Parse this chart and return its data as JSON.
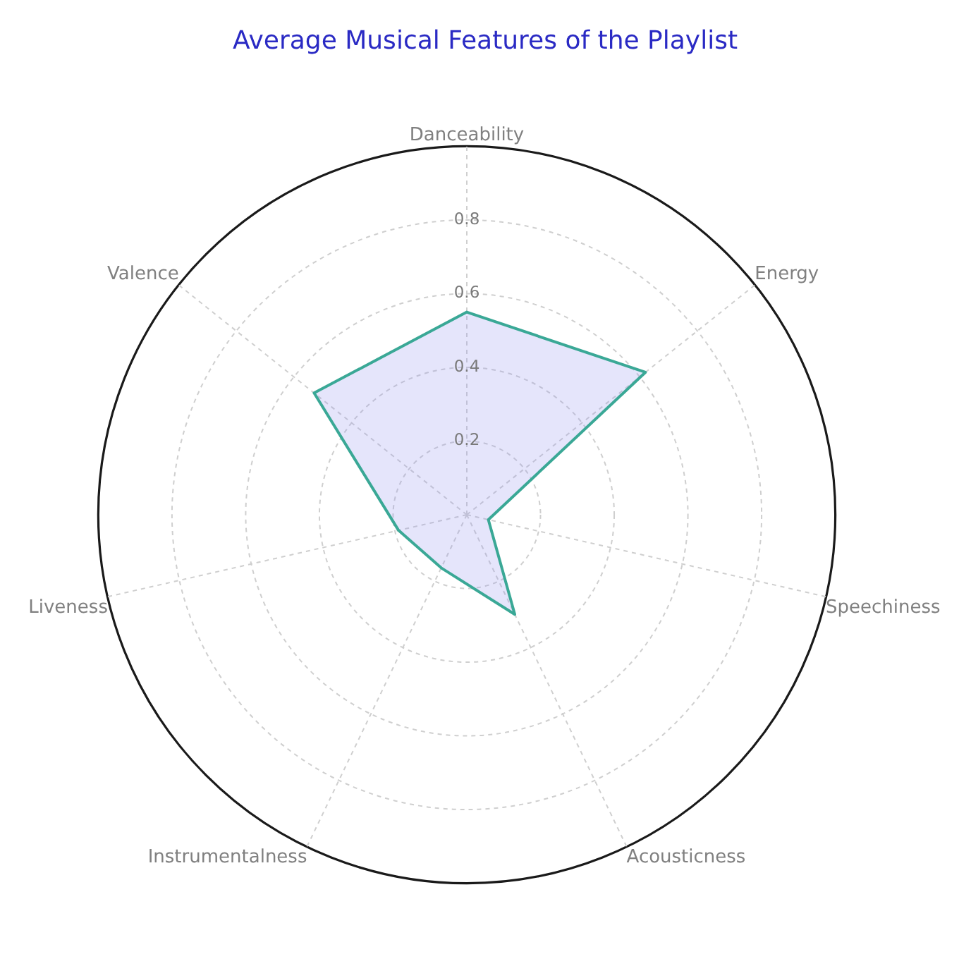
{
  "chart_data": {
    "type": "radar",
    "title": "Average Musical Features of the Playlist",
    "categories": [
      "Danceability",
      "Energy",
      "Speechiness",
      "Acousticness",
      "Instrumentalness",
      "Liveness",
      "Valence"
    ],
    "series": [
      {
        "color": "#3aa896",
        "values": [
          0.55,
          0.62,
          0.06,
          0.3,
          0.16,
          0.19,
          0.53
        ]
      }
    ],
    "ylim": [
      0,
      1
    ],
    "yticks": [
      0.2,
      0.4,
      0.6,
      0.8
    ],
    "grid": true,
    "marker": "none"
  }
}
